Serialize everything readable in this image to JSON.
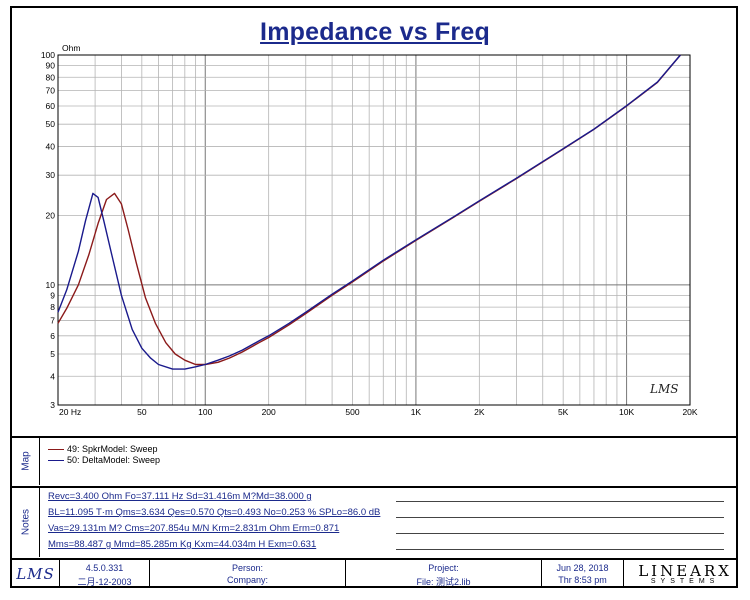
{
  "chart_data": {
    "type": "line",
    "title": "Impedance vs Freq",
    "ylabel": "Ohm",
    "x_scale": "log",
    "y_scale": "log",
    "xlim": [
      20,
      20000
    ],
    "ylim": [
      3,
      100
    ],
    "grid": true,
    "x_ticks": [
      "20 Hz",
      "50",
      "100",
      "200",
      "500",
      "1K",
      "2K",
      "5K",
      "10K",
      "20K"
    ],
    "y_ticks": [
      "3",
      "4",
      "5",
      "6",
      "7",
      "8",
      "9",
      "10",
      "20",
      "30",
      "40",
      "50",
      "60",
      "70",
      "80",
      "90",
      "100"
    ],
    "watermark": "LMS",
    "series": [
      {
        "name": "49: SpkrModel: Sweep",
        "color": "#8b1a1a",
        "x": [
          20,
          22,
          25,
          28,
          31,
          34,
          37.1,
          40,
          43,
          47,
          52,
          58,
          65,
          72,
          80,
          90,
          100,
          115,
          130,
          150,
          180,
          200,
          250,
          300,
          400,
          500,
          700,
          1000,
          1500,
          2000,
          3000,
          5000,
          7000,
          10000,
          14000,
          18000
        ],
        "y": [
          6.8,
          7.9,
          10.0,
          13.5,
          18.5,
          23.5,
          25.0,
          22.5,
          17.5,
          12.5,
          8.8,
          6.8,
          5.6,
          5.0,
          4.7,
          4.5,
          4.5,
          4.6,
          4.8,
          5.1,
          5.6,
          5.9,
          6.7,
          7.5,
          9.0,
          10.3,
          12.7,
          15.6,
          19.6,
          23.1,
          29.0,
          39.0,
          47.5,
          60.0,
          76.0,
          100.0
        ]
      },
      {
        "name": "50: DeltaModel: Sweep",
        "color": "#1a1a8c",
        "x": [
          20,
          22,
          25,
          27,
          29.3,
          31,
          33,
          36,
          40,
          45,
          50,
          55,
          60,
          70,
          80,
          90,
          100,
          115,
          130,
          150,
          180,
          200,
          250,
          300,
          400,
          500,
          700,
          1000,
          1500,
          2000,
          3000,
          5000,
          7000,
          10000,
          14000,
          18000
        ],
        "y": [
          7.6,
          9.5,
          14.0,
          19.0,
          25.0,
          24.0,
          19.0,
          13.5,
          9.0,
          6.4,
          5.3,
          4.8,
          4.5,
          4.3,
          4.3,
          4.4,
          4.5,
          4.7,
          4.9,
          5.2,
          5.7,
          6.0,
          6.8,
          7.6,
          9.1,
          10.4,
          12.8,
          15.7,
          19.7,
          23.2,
          29.1,
          39.1,
          47.6,
          60.2,
          76.2,
          100.0
        ]
      }
    ]
  },
  "map": {
    "label": "Map",
    "legend": [
      "49: SpkrModel: Sweep",
      "50: DeltaModel: Sweep"
    ]
  },
  "notes": {
    "label": "Notes",
    "lines": [
      "Revc=3.400 Ohm  Fo=37.111 Hz  Sd=31.416m M?Md=38.000 g",
      "BL=11.095 T·m  Qms=3.634  Qes=0.570  Qts=0.493  No=0.253 %  SPLo=86.0 dB",
      "Vas=29.131m M?  Cms=207.854u M/N  Krm=2.831m Ohm  Erm=0.871",
      "Mms=88.487 g  Mmd=85.285m Kg  Kxm=44.034m H  Exm=0.631"
    ]
  },
  "footer": {
    "logo": "LMS",
    "version": "4.5.0.331",
    "date_cn": "二月-12-2003",
    "person": "Person:",
    "company": "Company:",
    "project": "Project:",
    "file": "File: 测试2.lib",
    "date": "Jun 28, 2018",
    "time": "Thr  8:53 pm",
    "brand": "LINEARX",
    "brand_sub": "SYSTEMS"
  }
}
